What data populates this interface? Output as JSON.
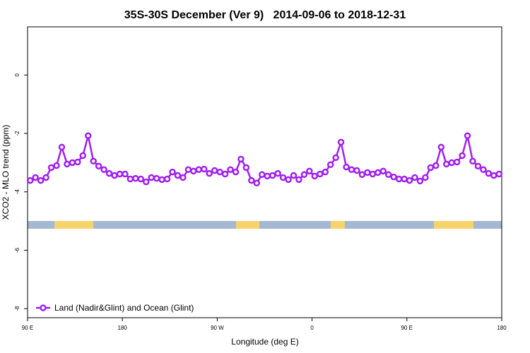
{
  "chart_data": {
    "type": "line",
    "title": "35S-30S December (Ver 9)   2014-09-06 to 2018-12-31",
    "x_label": "Longitude (deg E)",
    "y_label": "XCO2 - MLO trend (ppm)",
    "xlim": [
      90,
      540
    ],
    "xticks": [
      {
        "value": 90,
        "label": "90 E"
      },
      {
        "value": 180,
        "label": "180"
      },
      {
        "value": 270,
        "label": "90 W"
      },
      {
        "value": 360,
        "label": "0"
      },
      {
        "value": 450,
        "label": "90 E"
      },
      {
        "value": 540,
        "label": "180"
      }
    ],
    "ylim": [
      -8.31,
      1.65
    ],
    "yticks": [
      0,
      -2,
      -4,
      -6,
      -8
    ],
    "legend": "bottom left",
    "x": [
      92.5,
      97.5,
      102.5,
      107.5,
      112.5,
      117.5,
      122.5,
      127.5,
      132.5,
      137.5,
      142.5,
      147.5,
      152.5,
      157.5,
      162.5,
      167.5,
      172.5,
      177.5,
      182.5,
      187.5,
      192.5,
      197.5,
      202.5,
      207.5,
      212.5,
      217.5,
      222.5,
      227.5,
      232.5,
      237.5,
      242.5,
      247.5,
      252.5,
      257.5,
      262.5,
      267.5,
      272.5,
      277.5,
      282.5,
      287.5,
      292.5,
      297.5,
      302.5,
      307.5,
      312.5,
      317.5,
      322.5,
      327.5,
      332.5,
      337.5,
      342.5,
      347.5,
      352.5,
      357.5,
      362.5,
      367.5,
      372.5,
      377.5,
      382.5,
      387.5,
      392.5,
      397.5,
      402.5,
      407.5,
      412.5,
      417.5,
      422.5,
      427.5,
      432.5,
      437.5,
      442.5,
      447.5,
      452.5,
      457.5,
      462.5,
      467.5,
      472.5,
      477.5,
      482.5,
      487.5,
      492.5,
      497.5,
      502.5,
      507.5,
      512.5,
      517.5,
      522.5,
      527.5,
      532.5,
      537.5
    ],
    "series": [
      {
        "name": "Land (Nadir&Glint) and Ocean (Glint)",
        "color": "#a020f0",
        "values": [
          -3.61,
          -3.51,
          -3.61,
          -3.51,
          -3.17,
          -3.1,
          -2.47,
          -3.05,
          -3.0,
          -2.98,
          -2.76,
          -2.08,
          -2.95,
          -3.12,
          -3.24,
          -3.37,
          -3.44,
          -3.39,
          -3.39,
          -3.56,
          -3.54,
          -3.56,
          -3.66,
          -3.51,
          -3.54,
          -3.58,
          -3.56,
          -3.32,
          -3.44,
          -3.51,
          -3.24,
          -3.29,
          -3.24,
          -3.22,
          -3.37,
          -3.27,
          -3.32,
          -3.39,
          -3.24,
          -3.32,
          -2.88,
          -3.17,
          -3.61,
          -3.7,
          -3.41,
          -3.46,
          -3.44,
          -3.37,
          -3.51,
          -3.58,
          -3.44,
          -3.58,
          -3.41,
          -3.29,
          -3.46,
          -3.39,
          -3.32,
          -3.07,
          -2.83,
          -2.3,
          -3.15,
          -3.24,
          -3.27,
          -3.41,
          -3.34,
          -3.39,
          -3.34,
          -3.29,
          -3.41,
          -3.49,
          -3.56,
          -3.56,
          -3.61,
          -3.51,
          -3.63,
          -3.51,
          -3.17,
          -3.1,
          -2.47,
          -3.05,
          -3.0,
          -2.98,
          -2.76,
          -2.08,
          -2.95,
          -3.12,
          -3.24,
          -3.37,
          -3.44,
          -3.39
        ]
      }
    ]
  }
}
